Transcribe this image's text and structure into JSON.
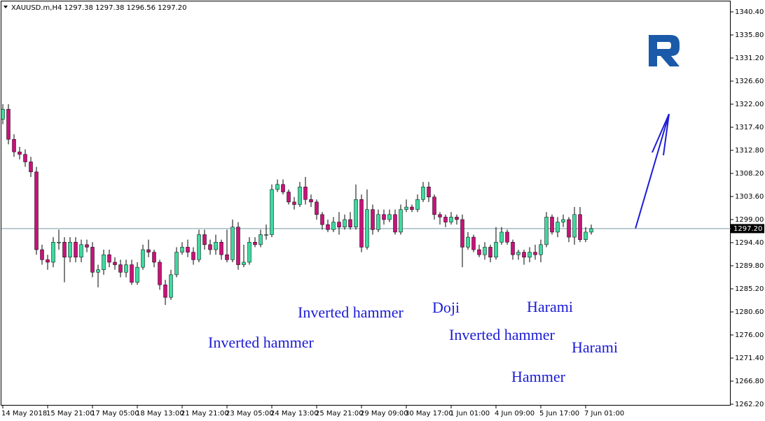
{
  "chart_data": {
    "type": "candlestick",
    "title": "XAUUSD.m,H4 1297.38 1297.38 1296.56 1297.20",
    "categories": [
      "14 May 2018",
      null,
      null,
      null,
      null,
      null,
      null,
      null,
      "15 May 21:00",
      null,
      null,
      null,
      null,
      null,
      null,
      null,
      "17 May 05:00",
      null,
      null,
      null,
      null,
      null,
      null,
      null,
      "18 May 13:00",
      null,
      null,
      null,
      null,
      null,
      null,
      null,
      "21 May 21:00",
      null,
      null,
      null,
      null,
      null,
      null,
      null,
      "23 May 05:00",
      null,
      null,
      null,
      null,
      null,
      null,
      null,
      "24 May 13:00",
      null,
      null,
      null,
      null,
      null,
      null,
      null,
      "25 May 21:00",
      null,
      null,
      null,
      null,
      null,
      null,
      null,
      "29 May 09:00",
      null,
      null,
      null,
      null,
      null,
      null,
      null,
      "30 May 17:00",
      null,
      null,
      null,
      null,
      null,
      null,
      null,
      "1 Jun 01:00",
      null,
      null,
      null,
      null,
      null,
      null,
      null,
      "4 Jun 09:00",
      null,
      null,
      null,
      null,
      null,
      null,
      null,
      "5 Jun 17:00",
      null,
      null,
      null,
      null,
      null,
      null,
      null,
      "7 Jun 01:00",
      null
    ],
    "open": [
      1319,
      1321,
      1315,
      1312.5,
      1312,
      1310.5,
      1308.5,
      1293,
      1291,
      1290.5,
      1294.5,
      1294.5,
      1291.5,
      1294.5,
      1291.5,
      1294,
      1293.5,
      1288.5,
      1289,
      1292,
      1290.5,
      1290,
      1288.5,
      1290,
      1286.5,
      1289.5,
      1293,
      1292.5,
      1290.5,
      1286,
      1283.5,
      1288,
      1292.5,
      1293.5,
      1292.5,
      1291,
      1296,
      1294,
      1293,
      1294.5,
      1292,
      1291,
      1297.5,
      1290,
      1290.5,
      1294.5,
      1294,
      1296,
      1296,
      1305,
      1306,
      1304.5,
      1302.5,
      1302,
      1305.5,
      1303,
      1302.5,
      1300,
      1298,
      1297,
      1298.5,
      1297.5,
      1299,
      1297.5,
      1303,
      1293.5,
      1301,
      1297,
      1300,
      1299,
      1300,
      1296.5,
      1301,
      1301.5,
      1301,
      1303,
      1305.5,
      1303.5,
      1300,
      1299.5,
      1298.5,
      1299.5,
      1299,
      1293.5,
      1295.5,
      1293,
      1292,
      1293.5,
      1291.5,
      1294.5,
      1296.5,
      1294.5,
      1292,
      1292.5,
      1291.5,
      1292.5,
      1292,
      1294,
      1299.5,
      1296.5,
      1298.5,
      1299,
      1295.5,
      1300,
      1295,
      1296.5
    ],
    "high": [
      1322,
      1322,
      1316,
      1313.5,
      1313,
      1311.5,
      1309.5,
      1294,
      1292,
      1295.5,
      1297,
      1295.5,
      1295.5,
      1295.5,
      1295,
      1295,
      1294.5,
      1290,
      1293,
      1293,
      1291.5,
      1291,
      1291,
      1291,
      1290.5,
      1294,
      1295,
      1293,
      1291,
      1287,
      1289,
      1293.5,
      1294.5,
      1295,
      1293.5,
      1297,
      1297,
      1295,
      1296,
      1295,
      1297,
      1299,
      1298.5,
      1294,
      1295.5,
      1295.5,
      1297,
      1298,
      1306,
      1307,
      1307,
      1305,
      1303.5,
      1306.5,
      1307.5,
      1304,
      1303,
      1300.5,
      1299,
      1299.5,
      1300.5,
      1300,
      1300.5,
      1306,
      1304,
      1305,
      1302,
      1301,
      1301,
      1301,
      1301,
      1302,
      1303,
      1302,
      1304,
      1306.5,
      1306.5,
      1304,
      1300.5,
      1300,
      1300.5,
      1300,
      1300,
      1296.5,
      1296,
      1294,
      1294.5,
      1294,
      1297.5,
      1297.5,
      1297,
      1295,
      1293,
      1293,
      1293.5,
      1294,
      1295,
      1300.5,
      1300,
      1299.5,
      1300,
      1299.5,
      1301.5,
      1301.5,
      1297.5,
      1298
    ],
    "low": [
      1318,
      1314,
      1311.5,
      1311,
      1309.5,
      1307.5,
      1292,
      1290,
      1289,
      1289.5,
      1293,
      1286.5,
      1290.5,
      1290.5,
      1290.5,
      1292.5,
      1287.5,
      1285.5,
      1288,
      1289.5,
      1289,
      1287.5,
      1287.5,
      1286,
      1286,
      1289,
      1291.5,
      1289.5,
      1285,
      1282,
      1283,
      1287.5,
      1292,
      1291.5,
      1290,
      1290.5,
      1293,
      1292,
      1292,
      1291,
      1290.5,
      1290.5,
      1289,
      1289.5,
      1290,
      1293.5,
      1293.5,
      1295,
      1295.5,
      1304.5,
      1304,
      1302,
      1301,
      1301.5,
      1302,
      1301.5,
      1299,
      1297,
      1296.5,
      1296.5,
      1296,
      1297,
      1297,
      1297,
      1292.5,
      1293,
      1296,
      1296.5,
      1298,
      1298.5,
      1296,
      1296,
      1300.5,
      1300.5,
      1300.5,
      1302.5,
      1302.5,
      1299,
      1298,
      1297.5,
      1298,
      1298,
      1289.5,
      1293,
      1292.5,
      1291.5,
      1291,
      1290.5,
      1291,
      1294,
      1294,
      1291,
      1291,
      1290,
      1290.5,
      1291,
      1290.5,
      1293.5,
      1296,
      1295.5,
      1297.5,
      1294.5,
      1294,
      1294.5,
      1294.5,
      1296
    ],
    "close": [
      1321,
      1315,
      1312.5,
      1312,
      1310.5,
      1308.5,
      1293,
      1291,
      1290.5,
      1294.5,
      1294.5,
      1291.5,
      1294.5,
      1291.5,
      1294,
      1293.5,
      1288.5,
      1289,
      1292,
      1290.5,
      1290,
      1288.5,
      1290,
      1286.5,
      1289.5,
      1293,
      1292.5,
      1290.5,
      1286,
      1283.5,
      1288,
      1292.5,
      1293.5,
      1292.5,
      1291,
      1296,
      1294,
      1293,
      1294.5,
      1292,
      1291,
      1297.5,
      1290,
      1290.5,
      1294.5,
      1294,
      1296,
      1296,
      1305,
      1306,
      1304.5,
      1302.5,
      1302,
      1305.5,
      1303,
      1302.5,
      1300,
      1298,
      1297,
      1298.5,
      1297.5,
      1299,
      1297.5,
      1303,
      1293.5,
      1301,
      1297,
      1300,
      1299,
      1300,
      1296.5,
      1301,
      1301.5,
      1301,
      1303,
      1305.5,
      1303.5,
      1300,
      1299.5,
      1298.5,
      1299.5,
      1299,
      1293.5,
      1295.5,
      1293,
      1292,
      1293.5,
      1291.5,
      1294.5,
      1296.5,
      1294.5,
      1292,
      1292.5,
      1291.5,
      1292.5,
      1292,
      1294,
      1299.5,
      1296.5,
      1298.5,
      1299,
      1295.5,
      1300,
      1295,
      1296.5,
      1297.2
    ],
    "up_color": "#3fd9a0",
    "down_color": "#c8127a",
    "ylim": [
      1261.92,
      1341.65
    ],
    "yticks": [
      {
        "value": 1340.4,
        "label": "1340.40"
      },
      {
        "value": 1335.8,
        "label": "1335.80"
      },
      {
        "value": 1331.2,
        "label": "1331.20"
      },
      {
        "value": 1326.6,
        "label": "1326.60"
      },
      {
        "value": 1322,
        "label": "1322.00"
      },
      {
        "value": 1317.4,
        "label": "1317.40"
      },
      {
        "value": 1312.8,
        "label": "1312.80"
      },
      {
        "value": 1308.2,
        "label": "1308.20"
      },
      {
        "value": 1303.6,
        "label": "1303.60"
      },
      {
        "value": 1299,
        "label": "1299.00"
      },
      {
        "value": 1294.4,
        "label": "1294.40"
      },
      {
        "value": 1289.8,
        "label": "1289.80"
      },
      {
        "value": 1285.2,
        "label": "1285.20"
      },
      {
        "value": 1280.6,
        "label": "1280.60"
      },
      {
        "value": 1276,
        "label": "1276.00"
      },
      {
        "value": 1271.4,
        "label": "1271.40"
      },
      {
        "value": 1266.8,
        "label": "1266.80"
      },
      {
        "value": 1262.2,
        "label": "1262.20"
      }
    ],
    "price_line": {
      "value": 1297.2,
      "label": "1297.20"
    },
    "annotations": [
      "Inverted hammer",
      "Inverted hammer",
      "Doji",
      "Inverted hammer",
      "Harami",
      "Harami",
      "Hammer"
    ]
  }
}
